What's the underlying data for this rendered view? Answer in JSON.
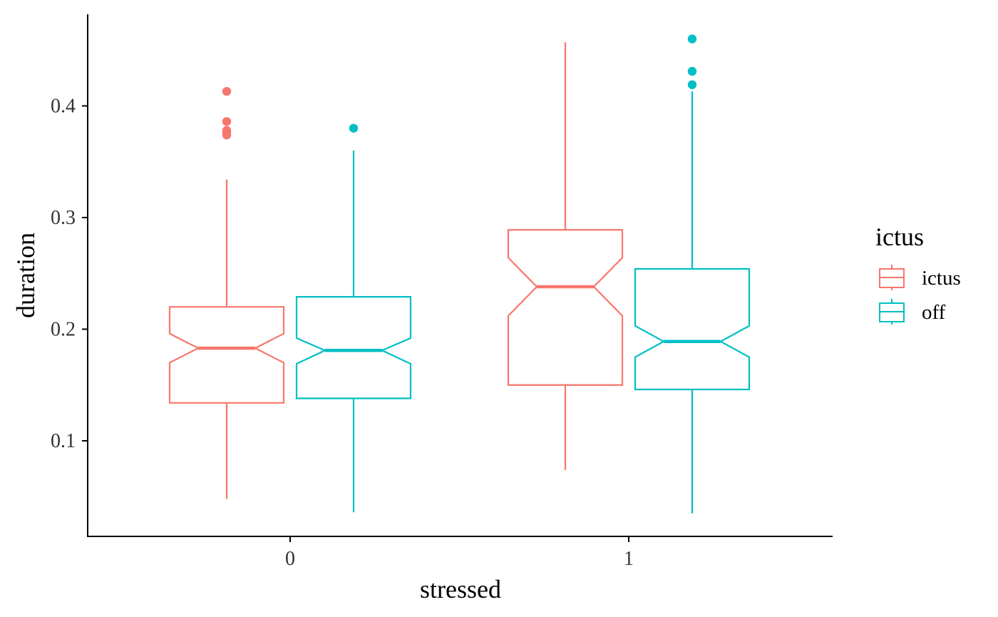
{
  "chart_data": {
    "type": "boxplot",
    "notched": true,
    "xlabel": "stressed",
    "ylabel": "duration",
    "categories": [
      "0",
      "1"
    ],
    "ylim": [
      0.02,
      0.48
    ],
    "yticks": [
      0.1,
      0.2,
      0.3,
      0.4
    ],
    "ytick_labels": [
      "0.1",
      "0.2",
      "0.3",
      "0.4"
    ],
    "grid": false,
    "legend": {
      "title": "ictus",
      "position": "right",
      "items": [
        {
          "label": "ictus",
          "color": "#F8766D"
        },
        {
          "label": "off",
          "color": "#00BFC4"
        }
      ]
    },
    "series": [
      {
        "name": "ictus",
        "color": "#F8766D",
        "boxes": [
          {
            "category": "0",
            "min": 0.048,
            "q1": 0.134,
            "notch_low": 0.17,
            "median": 0.183,
            "notch_high": 0.196,
            "q3": 0.22,
            "max": 0.334,
            "outliers": [
              0.374,
              0.376,
              0.378,
              0.386,
              0.413
            ]
          },
          {
            "category": "1",
            "min": 0.074,
            "q1": 0.15,
            "notch_low": 0.212,
            "median": 0.238,
            "notch_high": 0.264,
            "q3": 0.289,
            "max": 0.457,
            "outliers": []
          }
        ]
      },
      {
        "name": "off",
        "color": "#00BFC4",
        "boxes": [
          {
            "category": "0",
            "min": 0.036,
            "q1": 0.138,
            "notch_low": 0.169,
            "median": 0.181,
            "notch_high": 0.192,
            "q3": 0.229,
            "max": 0.36,
            "outliers": [
              0.38
            ]
          },
          {
            "category": "1",
            "min": 0.035,
            "q1": 0.146,
            "notch_low": 0.175,
            "median": 0.189,
            "notch_high": 0.203,
            "q3": 0.254,
            "max": 0.413,
            "outliers": [
              0.419,
              0.431,
              0.46
            ]
          }
        ]
      }
    ]
  }
}
